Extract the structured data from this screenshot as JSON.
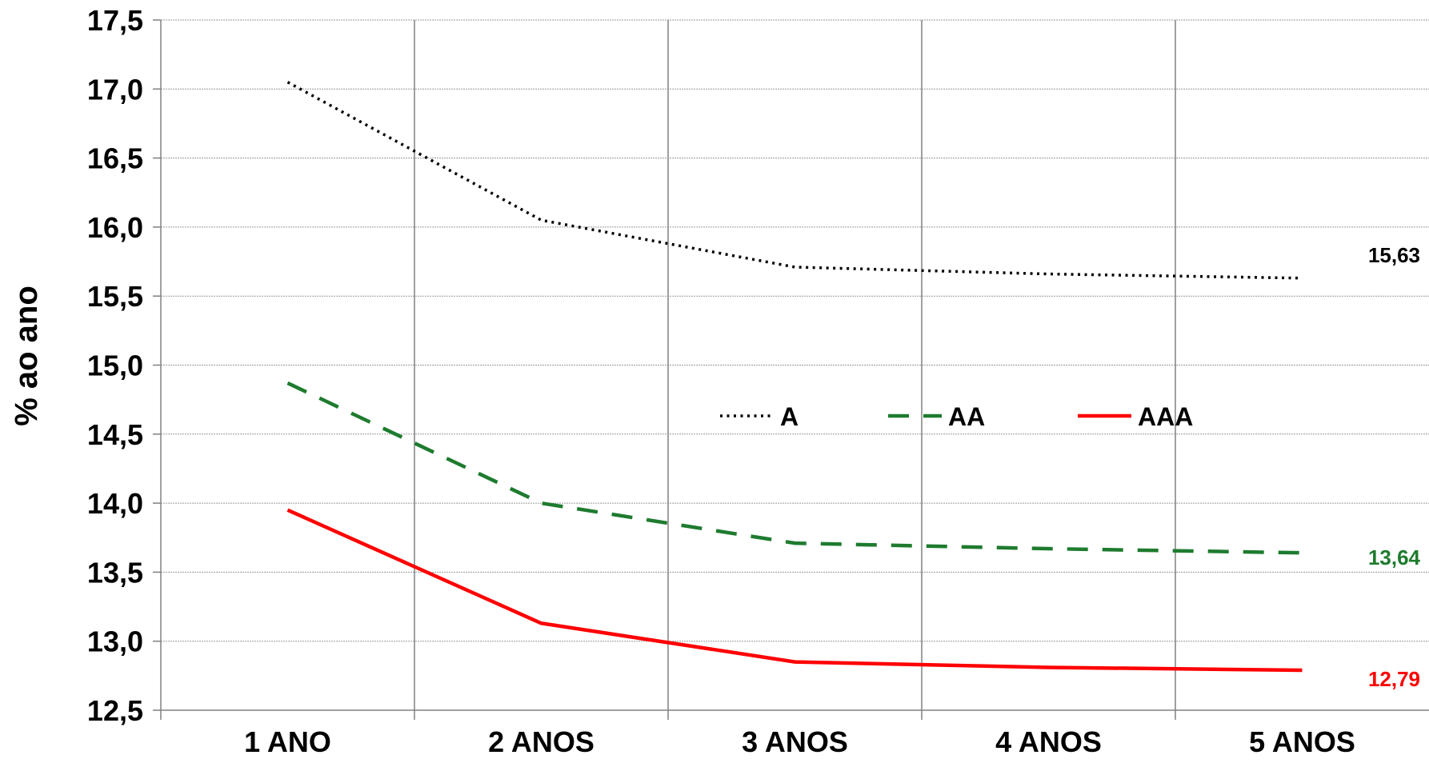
{
  "chart_data": {
    "type": "line",
    "categories": [
      "1 ANO",
      "2 ANOS",
      "3 ANOS",
      "4 ANOS",
      "5 ANOS"
    ],
    "ylabel": "% ao ano",
    "ylim": [
      12.5,
      17.5
    ],
    "yticks": [
      "12,5",
      "13,0",
      "13,5",
      "14,0",
      "14,5",
      "15,0",
      "15,5",
      "16,0",
      "16,5",
      "17,0",
      "17,5"
    ],
    "grid": true,
    "legend_position": "center-right",
    "series": [
      {
        "name": "A",
        "style": "dotted",
        "color": "#000000",
        "values": [
          17.05,
          16.05,
          15.71,
          15.66,
          15.63
        ],
        "end_label": "15,63"
      },
      {
        "name": "AA",
        "style": "dashed",
        "color": "#1e7b2e",
        "values": [
          14.87,
          14.0,
          13.71,
          13.67,
          13.64
        ],
        "end_label": "13,64"
      },
      {
        "name": "AAA",
        "style": "solid",
        "color": "#ff0000",
        "values": [
          13.95,
          13.13,
          12.85,
          12.81,
          12.79
        ],
        "end_label": "12,79"
      }
    ]
  }
}
